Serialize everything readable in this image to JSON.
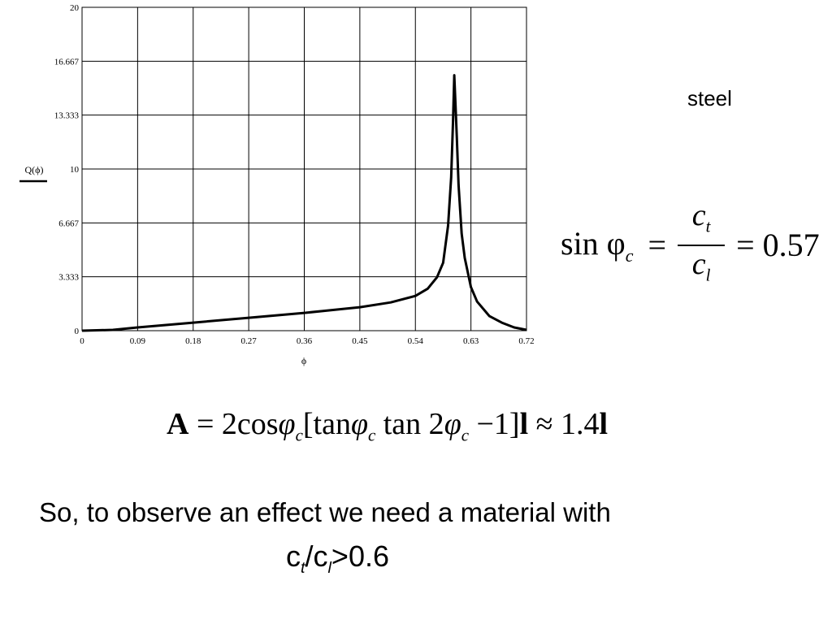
{
  "chart_data": {
    "type": "line",
    "xlabel": "ϕ",
    "ylabel": "Q(ϕ)",
    "xlim": [
      0,
      0.72
    ],
    "ylim": [
      0,
      20
    ],
    "xticks": [
      "0",
      "0.09",
      "0.18",
      "0.27",
      "0.36",
      "0.45",
      "0.54",
      "0.63",
      "0.72"
    ],
    "yticks": [
      "0",
      "3.333",
      "6.667",
      "10",
      "13.333",
      "16.667",
      "20"
    ],
    "grid": true,
    "series": [
      {
        "x": [
          0.0,
          0.05,
          0.09,
          0.18,
          0.27,
          0.36,
          0.45,
          0.5,
          0.54,
          0.56,
          0.575,
          0.585,
          0.593,
          0.598,
          0.601,
          0.603,
          0.605,
          0.607,
          0.61,
          0.615,
          0.62,
          0.63,
          0.64,
          0.66,
          0.68,
          0.7,
          0.72
        ],
        "values": [
          0.0,
          0.05,
          0.2,
          0.5,
          0.8,
          1.1,
          1.45,
          1.75,
          2.15,
          2.6,
          3.3,
          4.2,
          6.5,
          9.5,
          13.0,
          15.8,
          14.0,
          12.0,
          9.0,
          6.0,
          4.5,
          2.7,
          1.8,
          0.9,
          0.5,
          0.2,
          0.05
        ]
      }
    ]
  },
  "material_label": "steel",
  "equation_sin": {
    "lhs": "sin φ",
    "lhs_sub": "c",
    "eq1": "=",
    "num": "c",
    "num_sub": "t",
    "den": "c",
    "den_sub": "l",
    "rhs": "= 0.57"
  },
  "equation_a": {
    "p1": "A",
    "p2": " = 2cos",
    "p3": "φ",
    "p3_sub": "c",
    "p4": "[tan",
    "p5": "φ",
    "p5_sub": "c",
    "p6": " tan 2",
    "p7": "φ",
    "p7_sub": "c",
    "p8": " −1]",
    "p9": "l",
    "p10": " ≈ 1.4",
    "p11": "l"
  },
  "conclusion": "So, to observe an effect we need a material with",
  "condition": {
    "c1": "c",
    "s1": "t",
    "slash": "/c",
    "s2": "l",
    "tail": ">0.6"
  }
}
